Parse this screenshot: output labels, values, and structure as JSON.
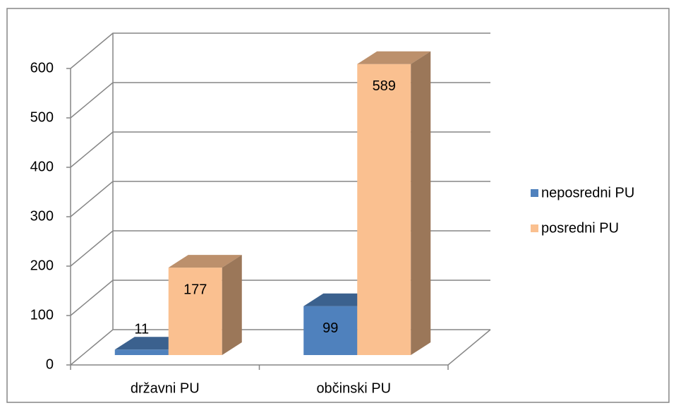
{
  "chart_data": {
    "type": "bar",
    "categories": [
      "državni PU",
      "občinski PU"
    ],
    "series": [
      {
        "name": "neposredni PU",
        "color": "#4f81bd",
        "values": [
          11,
          99
        ]
      },
      {
        "name": "posredni PU",
        "color": "#fac090",
        "values": [
          177,
          589
        ]
      }
    ],
    "ylim": [
      0,
      600
    ],
    "yticks": [
      0,
      100,
      200,
      300,
      400,
      500,
      600
    ],
    "grid": true,
    "legend": "right"
  }
}
